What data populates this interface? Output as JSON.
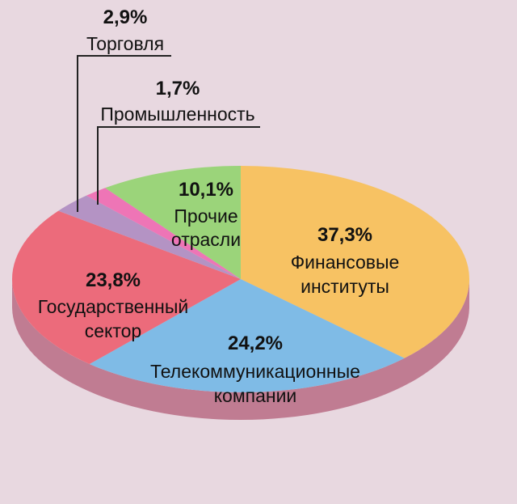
{
  "chart_data": {
    "type": "pie",
    "slices": [
      {
        "key": "fin",
        "value": 37.3,
        "value_label": "37,3%",
        "label_lines": [
          "Финансовые",
          "институты"
        ],
        "color": "#f7c263"
      },
      {
        "key": "tel",
        "value": 24.2,
        "value_label": "24,2%",
        "label_lines": [
          "Телекоммуникационные",
          "компании"
        ],
        "color": "#7fbbe6"
      },
      {
        "key": "gov",
        "value": 23.8,
        "value_label": "23,8%",
        "label_lines": [
          "Государственный",
          "сектор"
        ],
        "color": "#ec6b7b"
      },
      {
        "key": "trade",
        "value": 2.9,
        "value_label": "2,9%",
        "label_lines": [
          "Торговля"
        ],
        "color": "#b493c4"
      },
      {
        "key": "ind",
        "value": 1.7,
        "value_label": "1,7%",
        "label_lines": [
          "Промышленность"
        ],
        "color": "#ee75b6"
      },
      {
        "key": "other",
        "value": 10.1,
        "value_label": "10,1%",
        "label_lines": [
          "Прочие",
          "отрасли"
        ],
        "color": "#9bd47a"
      }
    ],
    "side_color": "#c07c92",
    "background": "#e8d8e0"
  }
}
